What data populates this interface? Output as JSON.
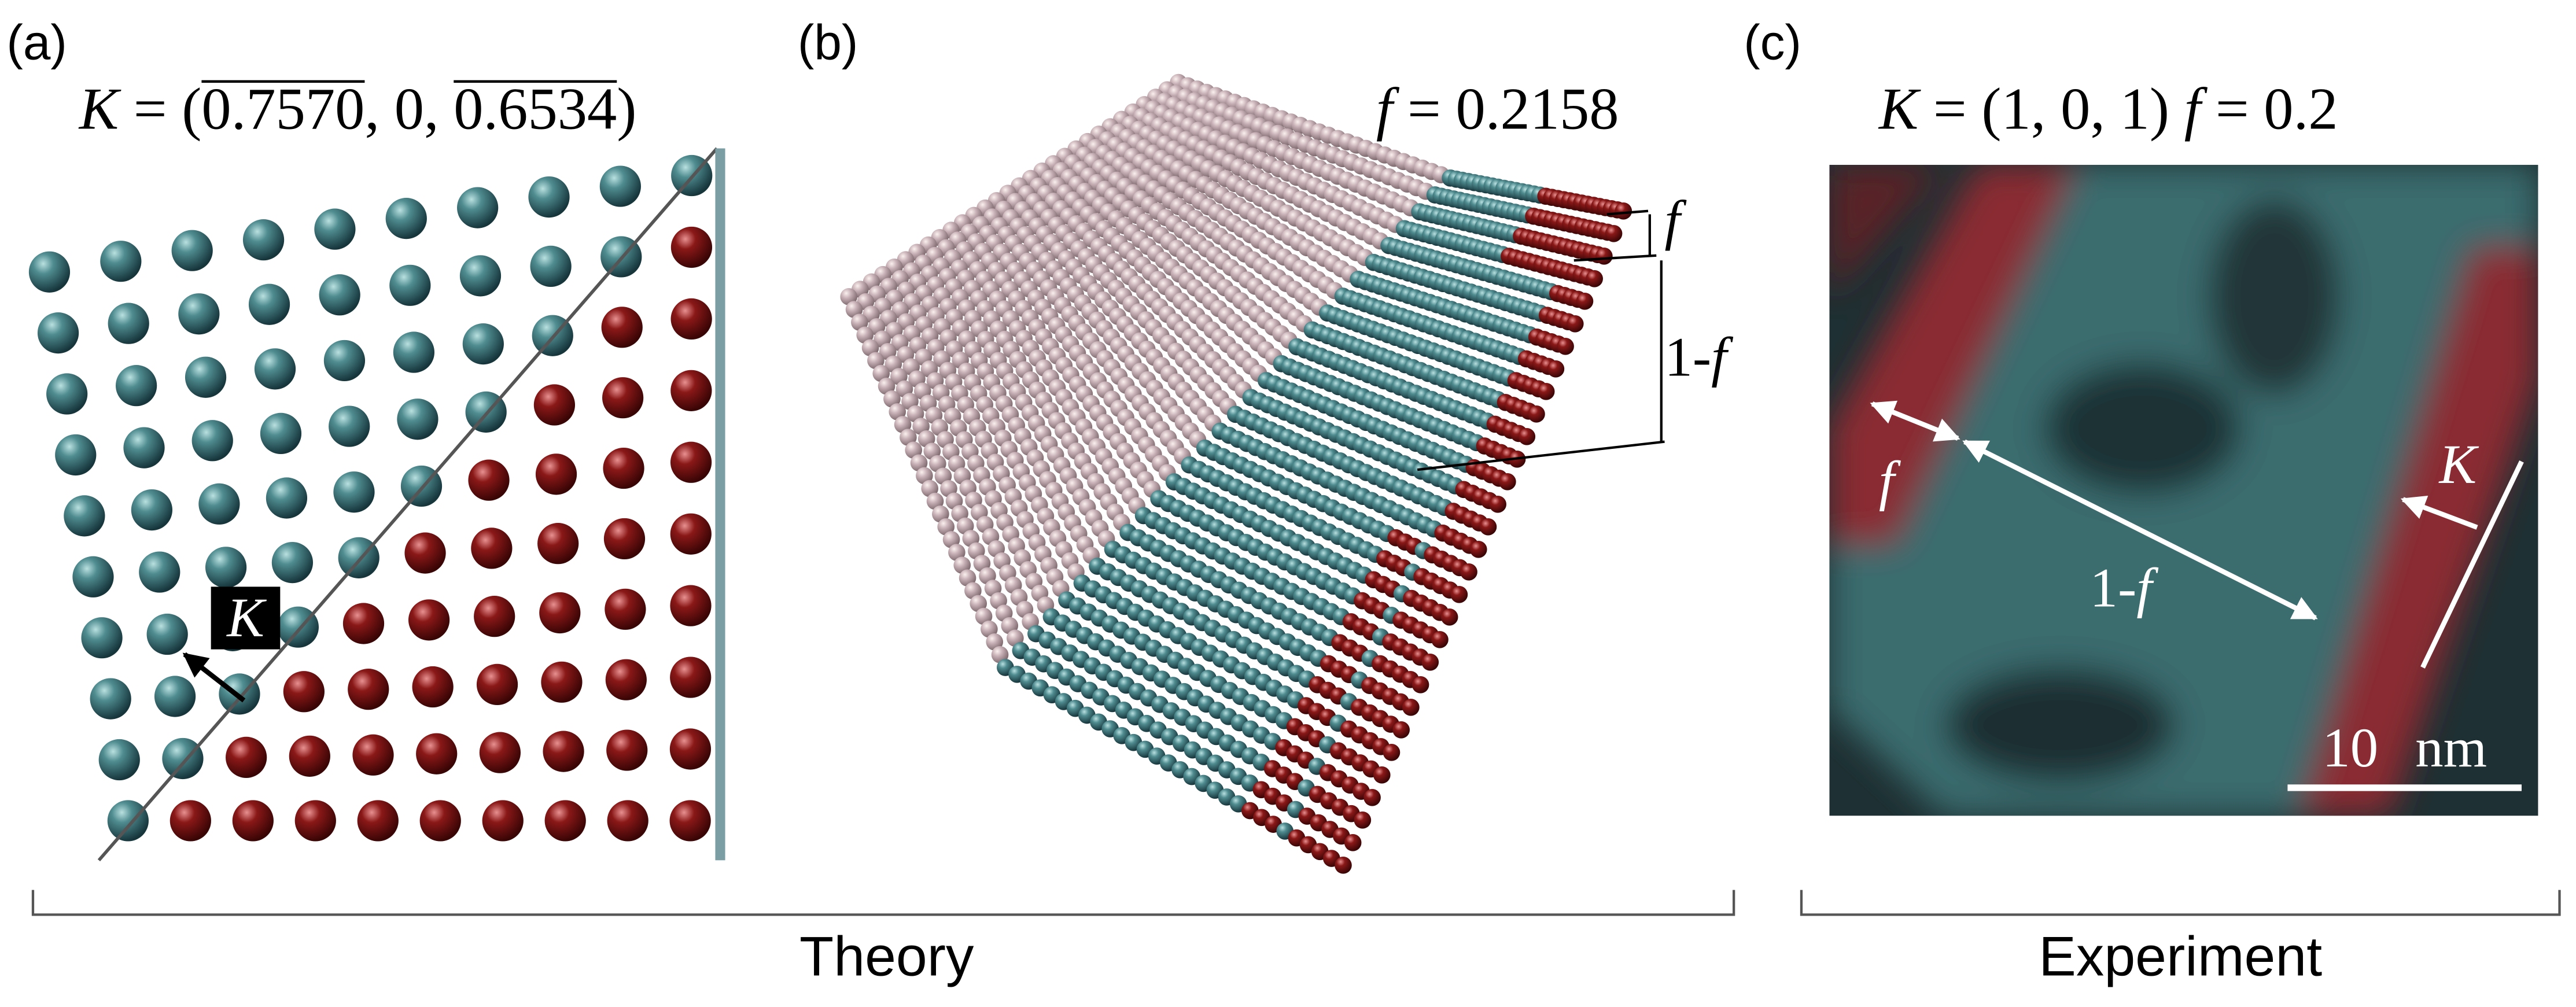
{
  "panel_a": {
    "label": "(a)",
    "formula": {
      "symbol": "K",
      "open": " = (",
      "x": "0.7570",
      "mid": ", 0, ",
      "z": "0.6534",
      "close": ")"
    },
    "vector_label": "K"
  },
  "panel_b": {
    "label": "(b)",
    "formula": {
      "symbol": "f",
      "rest": " = 0.2158"
    },
    "width_label": "f",
    "depth_label": {
      "prefix": "1-",
      "symbol": "f"
    }
  },
  "panel_c": {
    "label": "(c)",
    "formula": {
      "symbol_k": "K",
      "vector": " = (1, 0, 1) ",
      "symbol_f": "f",
      "fraction": " = 0.2"
    },
    "width_label": "f",
    "depth_label": {
      "prefix": "1-",
      "symbol": "f"
    },
    "vector_label": "K",
    "scale_bar": "10 nm"
  },
  "groups": {
    "theory": "Theory",
    "experiment": "Experiment"
  }
}
